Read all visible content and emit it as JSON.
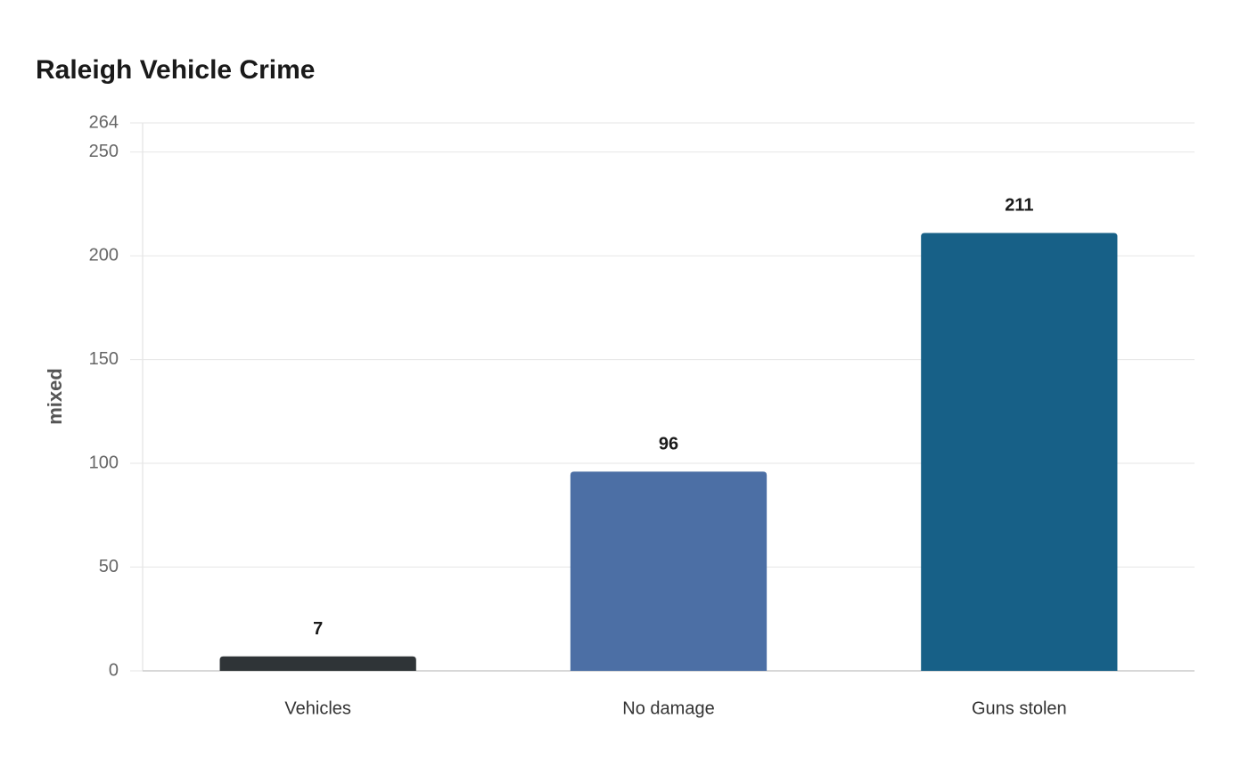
{
  "chart_data": {
    "type": "bar",
    "title": "Raleigh Vehicle Crime",
    "y_label": "mixed",
    "categories": [
      "Vehicles",
      "No damage",
      "Guns stolen"
    ],
    "values": [
      7,
      96,
      211
    ],
    "colors": [
      "#2f3437",
      "#4c6fa5",
      "#176087"
    ],
    "ylim": [
      0,
      264
    ],
    "yticks": [
      0,
      50,
      100,
      150,
      200,
      250,
      264
    ],
    "grid": true
  }
}
